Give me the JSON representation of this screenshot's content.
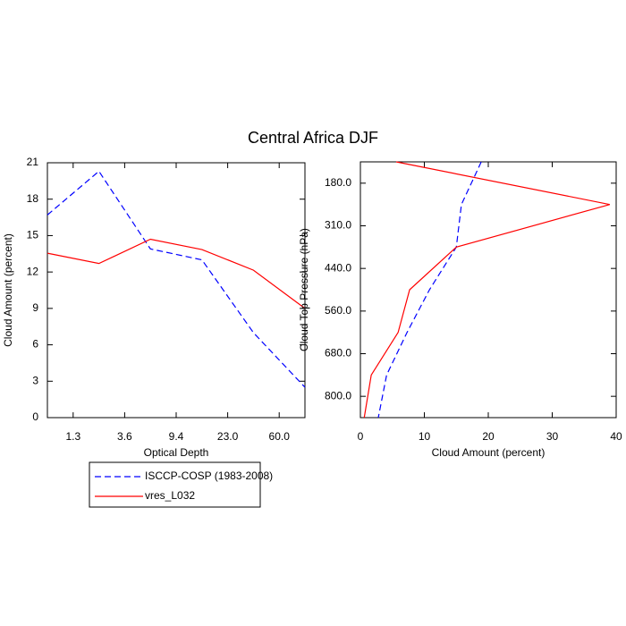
{
  "chart_data": [
    {
      "type": "line",
      "title": "Central Africa DJF",
      "x": [
        0,
        1,
        2,
        3,
        4,
        5
      ],
      "xlim": [
        0,
        5
      ],
      "xticks": [
        {
          "value": 0.5,
          "label": "1.3"
        },
        {
          "value": 1.5,
          "label": "3.6"
        },
        {
          "value": 2.5,
          "label": "9.4"
        },
        {
          "value": 3.5,
          "label": "23.0"
        },
        {
          "value": 4.5,
          "label": "60.0"
        }
      ],
      "ylim": [
        0,
        21
      ],
      "yticks": [
        0,
        3,
        6,
        9,
        12,
        15,
        18,
        21
      ],
      "xlabel": "Optical Depth",
      "ylabel": "Cloud Amount (percent)",
      "legend": "bottom-left",
      "series": [
        {
          "name": "ISCCP-COSP (1983-2008)",
          "color": "#0000ff",
          "dash": true,
          "values": [
            16.7,
            20.3,
            13.9,
            13.0,
            7.0,
            2.5
          ]
        },
        {
          "name": "vres_L032",
          "color": "#ff0000",
          "dash": false,
          "values": [
            13.55,
            12.7,
            14.7,
            13.85,
            12.15,
            9.0
          ]
        }
      ]
    },
    {
      "type": "line",
      "orientation": "horizontal",
      "y": [
        0,
        1,
        2,
        3,
        4,
        5,
        6
      ],
      "ylim": [
        6,
        0
      ],
      "yticks": [
        {
          "value": 0.5,
          "label": "180.0"
        },
        {
          "value": 1.5,
          "label": "310.0"
        },
        {
          "value": 2.5,
          "label": "440.0"
        },
        {
          "value": 3.5,
          "label": "560.0"
        },
        {
          "value": 4.5,
          "label": "680.0"
        },
        {
          "value": 5.5,
          "label": "800.0"
        }
      ],
      "xlim": [
        0,
        40
      ],
      "xticks": [
        0,
        10,
        20,
        30,
        40
      ],
      "xlabel": "Cloud Amount (percent)",
      "ylabel": "Cloud Top Pressure (hPa)",
      "series": [
        {
          "color": "#0000ff",
          "dash": true,
          "values": [
            18.9,
            15.8,
            15.0,
            10.8,
            7.3,
            4.1,
            2.8
          ]
        },
        {
          "color": "#ff0000",
          "dash": false,
          "values": [
            5.6,
            39.0,
            15.0,
            7.7,
            5.9,
            1.7,
            0.6
          ]
        }
      ]
    }
  ]
}
